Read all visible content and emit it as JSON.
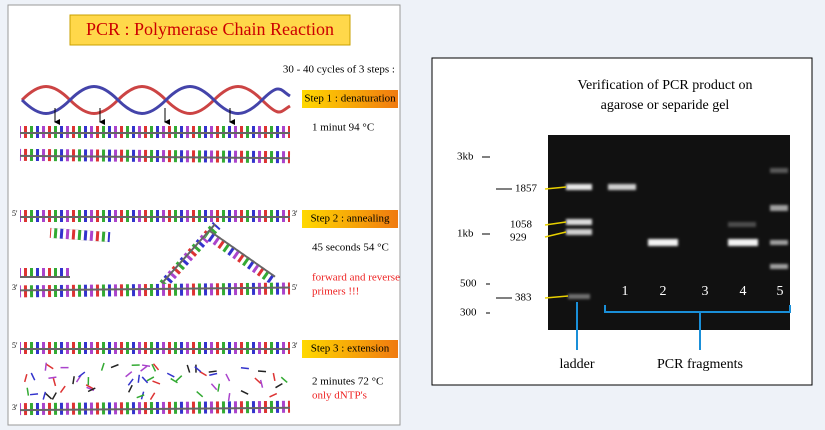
{
  "left": {
    "title": "PCR : Polymerase Chain Reaction",
    "cycles": "30 - 40 cycles of 3 steps :",
    "steps": [
      {
        "label": "Step 1 : denaturation",
        "time": "1 minut 94 °C"
      },
      {
        "label": "Step 2 : annealing",
        "time": "45 seconds 54 °C",
        "note": [
          "forward and reverse",
          "primers !!!"
        ]
      },
      {
        "label": "Step 3 : extension",
        "time": "2 minutes 72 °C",
        "note": [
          "only dNTP's"
        ]
      }
    ],
    "ends": [
      "5'",
      "3'"
    ]
  },
  "right": {
    "title": [
      "Verification of PCR product on",
      "agarose or separide gel"
    ],
    "scale": [
      "3kb",
      "1kb",
      "500",
      "300"
    ],
    "bands": [
      "1857",
      "1058",
      "929",
      "383"
    ],
    "lanes": [
      "1",
      "2",
      "3",
      "4",
      "5"
    ],
    "ladder": "ladder",
    "fragments": "PCR fragments"
  }
}
